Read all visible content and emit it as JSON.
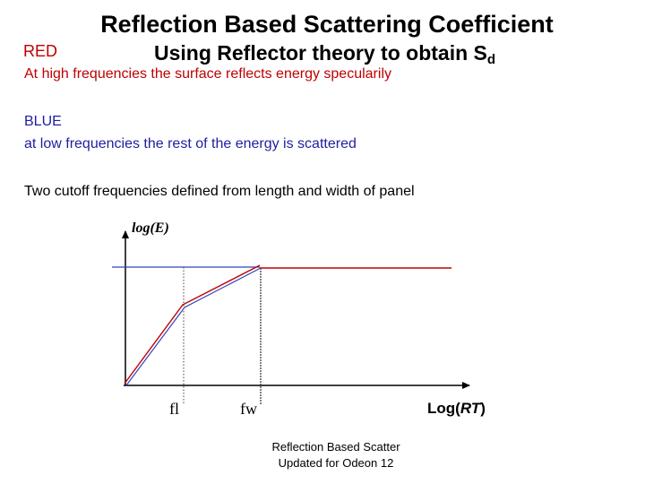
{
  "title": "Reflection Based Scattering Coefficient",
  "subtitle_main": "Using Reflector theory to obtain S",
  "subtitle_sub": "d",
  "red": {
    "label": "RED",
    "desc": "At high frequencies the surface reflects energy specularily"
  },
  "blue": {
    "label": "BLUE",
    "desc": "at low frequencies the rest of the energy is scattered"
  },
  "cutoff_note": "Two cutoff frequencies defined from length and width of panel",
  "diagram": {
    "y_axis_label": "log(E)",
    "x_axis_label_prefix": "Log(",
    "x_axis_label_italic": "RT",
    "x_axis_label_suffix": ")",
    "cutoffs": [
      "fl",
      "fw"
    ],
    "colors": {
      "red": "#c00000",
      "blue": "#3344bb",
      "axis": "#000000",
      "guide": "#444444"
    }
  },
  "footer": {
    "line1": "Reflection Based Scatter",
    "line2": "Updated for Odeon 12"
  }
}
